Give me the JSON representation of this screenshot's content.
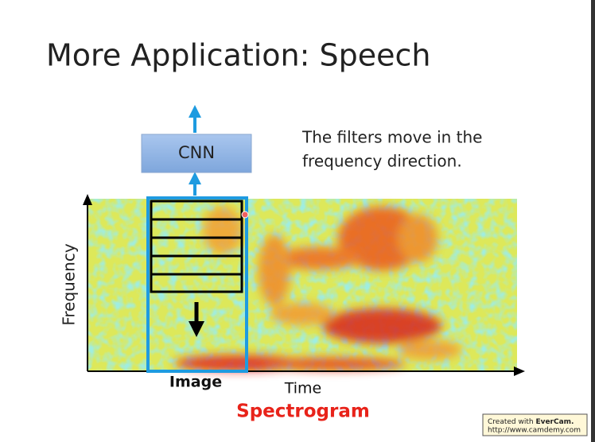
{
  "slide": {
    "title": "More Application: Speech",
    "model_box": "CNN",
    "note_lines": [
      "The filters move in the",
      "frequency direction."
    ],
    "y_axis_label": "Frequency",
    "image_label": "Image",
    "x_axis_label": "Time",
    "caption": "Spectrogram"
  },
  "watermark": {
    "line1_prefix": "Created with ",
    "line1_brand": "EverCam.",
    "line2": "http://www.camdemy.com"
  }
}
